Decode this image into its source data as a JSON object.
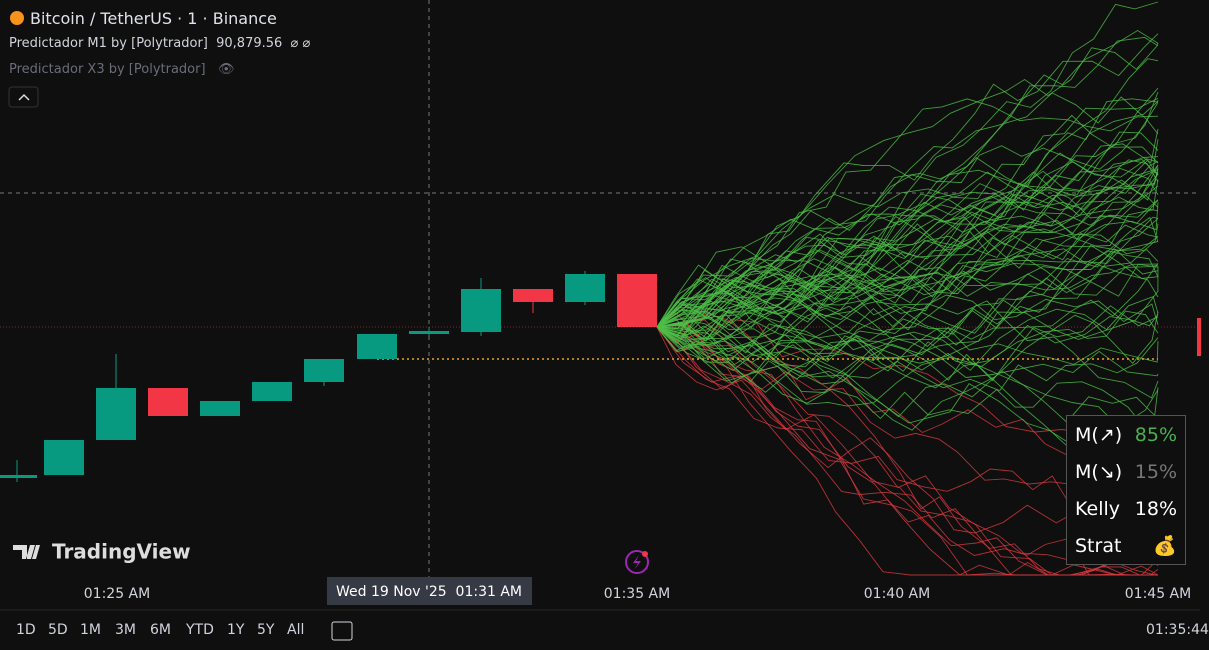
{
  "header": {
    "title": "Bitcoin / TetherUS · 1 · Binance",
    "indicators": [
      {
        "name": "Predictador M1 by [Polytrador]",
        "value": "90,879.56"
      },
      {
        "name": "Predictador X3 by [Polytrador]"
      }
    ]
  },
  "watermark": "TradingView",
  "time_axis": {
    "labels": [
      "01:25 AM",
      "01:35 AM",
      "01:40 AM",
      "01:45 AM"
    ],
    "crosshair": "Wed 19 Nov '25  01:31 AM"
  },
  "panel": {
    "rows": [
      [
        "M(↗)",
        "85%"
      ],
      [
        "M(↘)",
        "15%"
      ],
      [
        "Kelly",
        "18%"
      ],
      [
        "Strat",
        "💰"
      ]
    ]
  },
  "toolbar": {
    "ranges": [
      "1D",
      "5D",
      "1M",
      "3M",
      "6M",
      "YTD",
      "1Y",
      "5Y",
      "All"
    ],
    "clock": "01:35:44"
  }
}
